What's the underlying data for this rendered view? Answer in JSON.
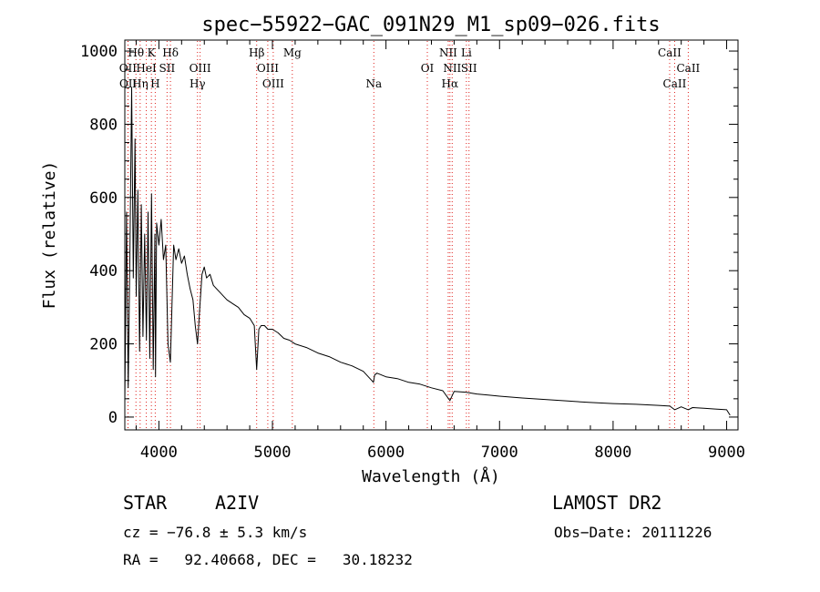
{
  "chart_data": {
    "type": "line",
    "title": "spec−55922−GAC_091N29_M1_sp09−026.fits",
    "xlabel": "Wavelength (Å)",
    "ylabel": "Flux (relative)",
    "xlim": [
      3700,
      9100
    ],
    "ylim": [
      -35,
      1030
    ],
    "xticks": [
      4000,
      5000,
      6000,
      7000,
      8000,
      9000
    ],
    "yticks": [
      0,
      200,
      400,
      600,
      800,
      1000
    ],
    "grid": false,
    "series": [
      {
        "x": [
          3700,
          3715,
          3730,
          3745,
          3760,
          3775,
          3790,
          3800,
          3815,
          3830,
          3845,
          3860,
          3875,
          3890,
          3905,
          3920,
          3935,
          3950,
          3965,
          3970,
          3980,
          4000,
          4020,
          4040,
          4060,
          4080,
          4101,
          4115,
          4130,
          4150,
          4175,
          4200,
          4225,
          4250,
          4275,
          4300,
          4320,
          4340,
          4360,
          4380,
          4400,
          4420,
          4450,
          4480,
          4510,
          4540,
          4570,
          4600,
          4650,
          4700,
          4750,
          4800,
          4840,
          4861,
          4880,
          4900,
          4930,
          4960,
          5000,
          5050,
          5100,
          5150,
          5200,
          5300,
          5400,
          5500,
          5600,
          5700,
          5800,
          5890,
          5900,
          5920,
          6000,
          6100,
          6200,
          6300,
          6400,
          6500,
          6563,
          6600,
          6700,
          6800,
          6900,
          7000,
          7200,
          7400,
          7600,
          7800,
          8000,
          8200,
          8400,
          8500,
          8542,
          8600,
          8662,
          8700,
          8800,
          8900,
          9000,
          9030
        ],
        "y": [
          40,
          560,
          80,
          450,
          900,
          380,
          760,
          330,
          620,
          180,
          580,
          220,
          500,
          210,
          560,
          160,
          610,
          130,
          500,
          110,
          530,
          470,
          540,
          430,
          470,
          200,
          150,
          300,
          470,
          430,
          460,
          420,
          440,
          390,
          350,
          320,
          250,
          200,
          300,
          390,
          410,
          380,
          390,
          360,
          350,
          340,
          330,
          320,
          310,
          300,
          280,
          270,
          250,
          130,
          240,
          250,
          250,
          240,
          240,
          230,
          215,
          210,
          200,
          190,
          175,
          165,
          150,
          140,
          125,
          95,
          115,
          120,
          110,
          105,
          95,
          90,
          80,
          72,
          45,
          70,
          68,
          63,
          60,
          57,
          52,
          48,
          44,
          40,
          37,
          35,
          32,
          30,
          20,
          28,
          20,
          26,
          24,
          22,
          20,
          5
        ]
      }
    ],
    "lines": [
      {
        "name": "Hθ",
        "wavelength": 3798
      },
      {
        "name": "K",
        "wavelength": 3934
      },
      {
        "name": "Hδ",
        "wavelength": 4102
      },
      {
        "name": "Hβ",
        "wavelength": 4861
      },
      {
        "name": "Mg",
        "wavelength": 5175
      },
      {
        "name": "NII",
        "wavelength": 6548
      },
      {
        "name": "Li",
        "wavelength": 6708
      },
      {
        "name": "CaII",
        "wavelength": 8498
      },
      {
        "name": "OII",
        "wavelength": 3727
      },
      {
        "name": "HeI",
        "wavelength": 3889
      },
      {
        "name": "SII",
        "wavelength": 4072
      },
      {
        "name": "OIII",
        "wavelength": 4363
      },
      {
        "name": "OIII",
        "wavelength": 4959
      },
      {
        "name": "OI",
        "wavelength": 6364
      },
      {
        "name": "NII",
        "wavelength": 6583
      },
      {
        "name": "SII",
        "wavelength": 6731
      },
      {
        "name": "CaII",
        "wavelength": 8662
      },
      {
        "name": "OII",
        "wavelength": 3729
      },
      {
        "name": "Hη",
        "wavelength": 3835
      },
      {
        "name": "H",
        "wavelength": 3968
      },
      {
        "name": "Hγ",
        "wavelength": 4340
      },
      {
        "name": "OIII",
        "wavelength": 5007
      },
      {
        "name": "Na",
        "wavelength": 5893
      },
      {
        "name": "Hα",
        "wavelength": 6563
      },
      {
        "name": "CaII",
        "wavelength": 8542
      }
    ]
  },
  "info": {
    "object_class": "STAR",
    "subclass": "A2IV",
    "survey": "LAMOST DR2",
    "redshift": "cz = −76.8 ± 5.3 km/s",
    "obs_date": "Obs−Date: 20111226",
    "coords": "RA =   92.40668, DEC =   30.18232"
  }
}
